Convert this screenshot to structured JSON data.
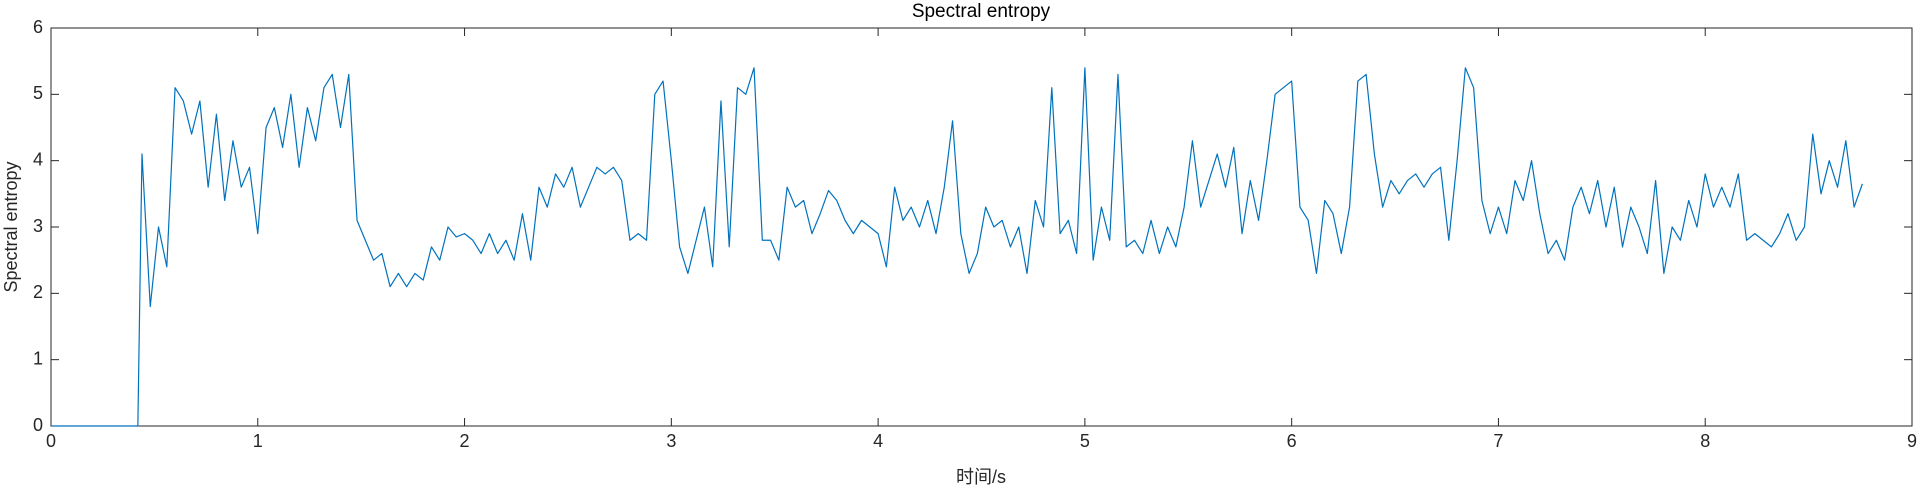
{
  "chart_data": {
    "type": "line",
    "title": "Spectral entropy",
    "x_label": "时间/s",
    "y_label": "Spectral entropy",
    "color": "#0072bd",
    "grid": false,
    "xlim": [
      0,
      9
    ],
    "ylim": [
      0,
      6
    ],
    "xticks": [
      0,
      1,
      2,
      3,
      4,
      5,
      6,
      7,
      8,
      9
    ],
    "yticks": [
      0,
      1,
      2,
      3,
      4,
      5,
      6
    ],
    "x": [
      0,
      0.42,
      0.44,
      0.48,
      0.52,
      0.56,
      0.6,
      0.64,
      0.68,
      0.72,
      0.76,
      0.8,
      0.84,
      0.88,
      0.92,
      0.96,
      1,
      1.04,
      1.08,
      1.12,
      1.16,
      1.2,
      1.24,
      1.28,
      1.32,
      1.36,
      1.4,
      1.44,
      1.48,
      1.52,
      1.56,
      1.6,
      1.64,
      1.68,
      1.72,
      1.76,
      1.8,
      1.84,
      1.88,
      1.92,
      1.96,
      2,
      2.04,
      2.08,
      2.12,
      2.16,
      2.2,
      2.24,
      2.28,
      2.32,
      2.36,
      2.4,
      2.44,
      2.48,
      2.52,
      2.56,
      2.6,
      2.64,
      2.68,
      2.72,
      2.76,
      2.8,
      2.84,
      2.88,
      2.92,
      2.96,
      3,
      3.04,
      3.08,
      3.12,
      3.16,
      3.2,
      3.24,
      3.28,
      3.32,
      3.36,
      3.4,
      3.44,
      3.48,
      3.52,
      3.56,
      3.6,
      3.64,
      3.68,
      3.72,
      3.76,
      3.8,
      3.84,
      3.88,
      3.92,
      3.96,
      4,
      4.04,
      4.08,
      4.12,
      4.16,
      4.2,
      4.24,
      4.28,
      4.32,
      4.36,
      4.4,
      4.44,
      4.48,
      4.52,
      4.56,
      4.6,
      4.64,
      4.68,
      4.72,
      4.76,
      4.8,
      4.84,
      4.88,
      4.92,
      4.96,
      5,
      5.04,
      5.08,
      5.12,
      5.16,
      5.2,
      5.24,
      5.28,
      5.32,
      5.36,
      5.4,
      5.44,
      5.48,
      5.52,
      5.56,
      5.6,
      5.64,
      5.68,
      5.72,
      5.76,
      5.8,
      5.84,
      5.88,
      5.92,
      5.96,
      6,
      6.04,
      6.08,
      6.12,
      6.16,
      6.2,
      6.24,
      6.28,
      6.32,
      6.36,
      6.4,
      6.44,
      6.48,
      6.52,
      6.56,
      6.6,
      6.64,
      6.68,
      6.72,
      6.76,
      6.8,
      6.84,
      6.88,
      6.92,
      6.96,
      7,
      7.04,
      7.08,
      7.12,
      7.16,
      7.2,
      7.24,
      7.28,
      7.32,
      7.36,
      7.4,
      7.44,
      7.48,
      7.52,
      7.56,
      7.6,
      7.64,
      7.68,
      7.72,
      7.76,
      7.8,
      7.84,
      7.88,
      7.92,
      7.96,
      8,
      8.04,
      8.08,
      8.12,
      8.16,
      8.2,
      8.24,
      8.28,
      8.32,
      8.36,
      8.4,
      8.44,
      8.48,
      8.52,
      8.56,
      8.6,
      8.64,
      8.68,
      8.72,
      8.76
    ],
    "values": [
      0,
      0,
      4.1,
      1.8,
      3.0,
      2.4,
      5.1,
      4.9,
      4.4,
      4.9,
      3.6,
      4.7,
      3.4,
      4.3,
      3.6,
      3.9,
      2.9,
      4.5,
      4.8,
      4.2,
      5.0,
      3.9,
      4.8,
      4.3,
      5.1,
      5.3,
      4.5,
      5.3,
      3.1,
      2.8,
      2.5,
      2.6,
      2.1,
      2.3,
      2.1,
      2.3,
      2.2,
      2.7,
      2.5,
      3.0,
      2.85,
      2.9,
      2.8,
      2.6,
      2.9,
      2.6,
      2.8,
      2.5,
      3.2,
      2.5,
      3.6,
      3.3,
      3.8,
      3.6,
      3.9,
      3.3,
      3.6,
      3.9,
      3.8,
      3.9,
      3.7,
      2.8,
      2.9,
      2.8,
      5.0,
      5.2,
      4.0,
      2.7,
      2.3,
      2.8,
      3.3,
      2.4,
      4.9,
      2.7,
      5.1,
      5.0,
      5.4,
      2.8,
      2.8,
      2.5,
      3.6,
      3.3,
      3.4,
      2.9,
      3.2,
      3.55,
      3.4,
      3.1,
      2.9,
      3.1,
      3.0,
      2.9,
      2.4,
      3.6,
      3.1,
      3.3,
      3.0,
      3.4,
      2.9,
      3.6,
      4.6,
      2.9,
      2.3,
      2.6,
      3.3,
      3.0,
      3.1,
      2.7,
      3.0,
      2.3,
      3.4,
      3.0,
      5.1,
      2.9,
      3.1,
      2.6,
      5.4,
      2.5,
      3.3,
      2.8,
      5.3,
      2.7,
      2.8,
      2.6,
      3.1,
      2.6,
      3.0,
      2.7,
      3.3,
      4.3,
      3.3,
      3.7,
      4.1,
      3.6,
      4.2,
      2.9,
      3.7,
      3.1,
      4.0,
      5.0,
      5.1,
      5.2,
      3.3,
      3.1,
      2.3,
      3.4,
      3.2,
      2.6,
      3.3,
      5.2,
      5.3,
      4.1,
      3.3,
      3.7,
      3.5,
      3.7,
      3.8,
      3.6,
      3.8,
      3.9,
      2.8,
      4.0,
      5.4,
      5.1,
      3.4,
      2.9,
      3.3,
      2.9,
      3.7,
      3.4,
      4.0,
      3.2,
      2.6,
      2.8,
      2.5,
      3.3,
      3.6,
      3.2,
      3.7,
      3.0,
      3.6,
      2.7,
      3.3,
      3.0,
      2.6,
      3.7,
      2.3,
      3.0,
      2.8,
      3.4,
      3.0,
      3.8,
      3.3,
      3.6,
      3.3,
      3.8,
      2.8,
      2.9,
      2.8,
      2.7,
      2.9,
      3.2,
      2.8,
      3.0,
      4.4,
      3.5,
      4.0,
      3.6,
      4.3,
      3.3,
      3.65
    ]
  }
}
